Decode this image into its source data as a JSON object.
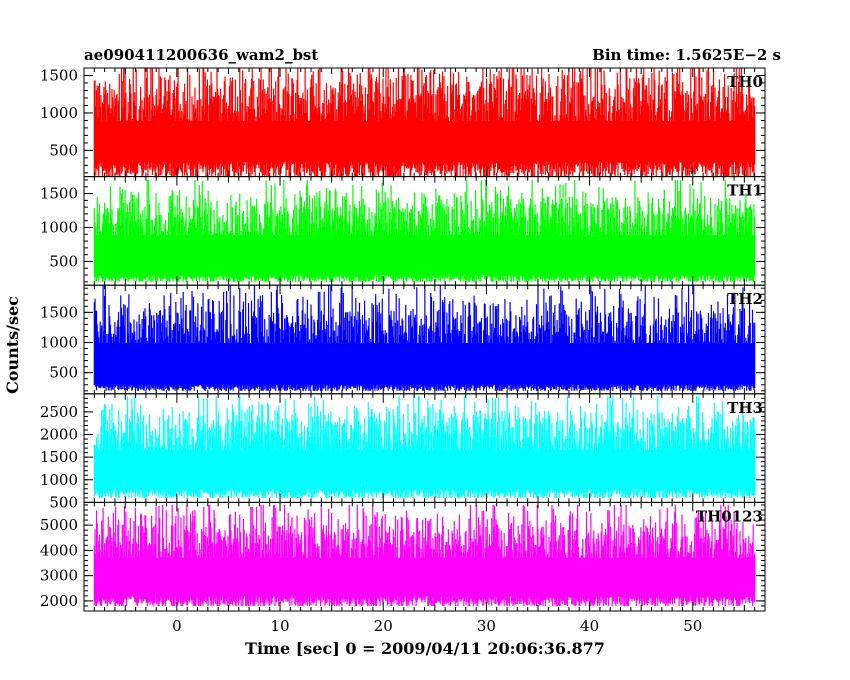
{
  "chart_data": {
    "type": "line",
    "title_left": "ae090411200636_wam2_bst",
    "title_right": "Bin time: 1.5625E−2 s",
    "xlabel": "Time [sec] 0 = 2009/04/11 20:06:36.877",
    "ylabel": "Counts/sec",
    "xlim": [
      -9,
      57
    ],
    "x_ticks": [
      0,
      10,
      20,
      30,
      40,
      50
    ],
    "x_tick_labels": [
      "0",
      "10",
      "20",
      "30",
      "40",
      "50"
    ],
    "x_start": -8,
    "x_end": 56,
    "panels": [
      {
        "name": "TH0",
        "color": "#ff0000",
        "ylim": [
          150,
          1600
        ],
        "y_ticks": [
          500,
          1000,
          1500
        ],
        "y_tick_labels": [
          "500",
          "1000",
          "1500"
        ],
        "baseline": 150,
        "spike_max": 1650,
        "typical_low": 350
      },
      {
        "name": "TH1",
        "color": "#00ff00",
        "ylim": [
          150,
          1750
        ],
        "y_ticks": [
          500,
          1000,
          1500
        ],
        "y_tick_labels": [
          "500",
          "1000",
          "1500"
        ],
        "baseline": 200,
        "spike_max": 1700,
        "typical_low": 300
      },
      {
        "name": "TH2",
        "color": "#0000ff",
        "ylim": [
          150,
          1950
        ],
        "y_ticks": [
          500,
          1000,
          1500
        ],
        "y_tick_labels": [
          "500",
          "1000",
          "1500"
        ],
        "baseline": 200,
        "spike_max": 1950,
        "typical_low": 300
      },
      {
        "name": "TH3",
        "color": "#00ffff",
        "ylim": [
          500,
          2900
        ],
        "y_ticks": [
          500,
          1000,
          1500,
          2000,
          2500
        ],
        "y_tick_labels": [
          "500",
          "1000",
          "1500",
          "2000",
          "2500"
        ],
        "baseline": 600,
        "spike_max": 2850,
        "typical_low": 800
      },
      {
        "name": "TH0123",
        "color": "#ff00ff",
        "ylim": [
          1600,
          5900
        ],
        "y_ticks": [
          2000,
          3000,
          4000,
          5000
        ],
        "y_tick_labels": [
          "2000",
          "3000",
          "4000",
          "5000"
        ],
        "baseline": 1800,
        "spike_max": 5800,
        "typical_low": 2200
      }
    ]
  }
}
